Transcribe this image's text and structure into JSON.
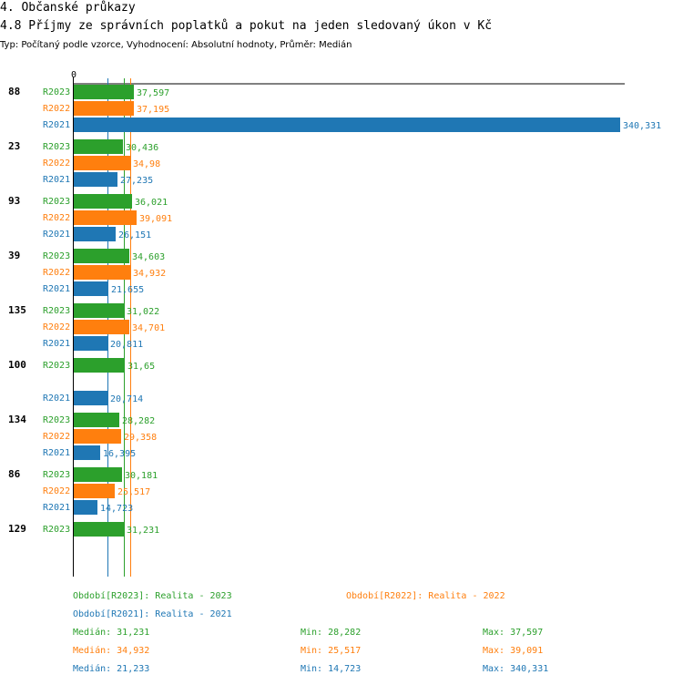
{
  "header": {
    "section": "4. Občanské průkazy",
    "title": "4.8 Příjmy ze správních poplatků a pokut na jeden sledovaný úkon v Kč",
    "subtitle": "Typ: Počítaný podle vzorce, Vyhodnocení: Absolutní hodnoty, Průměr: Medián"
  },
  "colors": {
    "R2023": "#2ca02c",
    "R2022": "#ff7f0e",
    "R2021": "#1f77b4"
  },
  "chart_data": {
    "type": "bar",
    "orientation": "horizontal",
    "axis_zero_label": "0",
    "xlim": [
      0,
      340.331
    ],
    "series_order": [
      "R2023",
      "R2022",
      "R2021"
    ],
    "groups": [
      {
        "label": "88",
        "values": {
          "R2023": 37.597,
          "R2022": 37.195,
          "R2021": 340.331
        },
        "text": {
          "R2023": "37,597",
          "R2022": "37,195",
          "R2021": "340,331"
        }
      },
      {
        "label": "23",
        "values": {
          "R2023": 30.436,
          "R2022": 34.98,
          "R2021": 27.235
        },
        "text": {
          "R2023": "30,436",
          "R2022": "34,98",
          "R2021": "27,235"
        }
      },
      {
        "label": "93",
        "values": {
          "R2023": 36.021,
          "R2022": 39.091,
          "R2021": 26.151
        },
        "text": {
          "R2023": "36,021",
          "R2022": "39,091",
          "R2021": "26,151"
        }
      },
      {
        "label": "39",
        "values": {
          "R2023": 34.603,
          "R2022": 34.932,
          "R2021": 21.655
        },
        "text": {
          "R2023": "34,603",
          "R2022": "34,932",
          "R2021": "21,655"
        }
      },
      {
        "label": "135",
        "values": {
          "R2023": 31.022,
          "R2022": 34.701,
          "R2021": 20.811
        },
        "text": {
          "R2023": "31,022",
          "R2022": "34,701",
          "R2021": "20,811"
        }
      },
      {
        "label": "100",
        "values": {
          "R2023": 31.65,
          "R2022": null,
          "R2021": 20.714
        },
        "text": {
          "R2023": "31,65",
          "R2022": null,
          "R2021": "20,714"
        }
      },
      {
        "label": "134",
        "values": {
          "R2023": 28.282,
          "R2022": 29.358,
          "R2021": 16.395
        },
        "text": {
          "R2023": "28,282",
          "R2022": "29,358",
          "R2021": "16,395"
        }
      },
      {
        "label": "86",
        "values": {
          "R2023": 30.181,
          "R2022": 25.517,
          "R2021": 14.723
        },
        "text": {
          "R2023": "30,181",
          "R2022": "25,517",
          "R2021": "14,723"
        }
      },
      {
        "label": "129",
        "values": {
          "R2023": 31.231,
          "R2022": null,
          "R2021": null
        },
        "text": {
          "R2023": "31,231",
          "R2022": null,
          "R2021": null
        }
      }
    ],
    "median_lines": {
      "R2023": 31.231,
      "R2022": 34.932,
      "R2021": 21.233
    }
  },
  "legend": {
    "r2023": "Období[R2023]: Realita - 2023",
    "r2022": "Období[R2022]: Realita - 2022",
    "r2021": "Období[R2021]: Realita - 2021"
  },
  "stats": {
    "r2023": {
      "median": "Medián: 31,231",
      "min": "Min: 28,282",
      "max": "Max: 37,597"
    },
    "r2022": {
      "median": "Medián: 34,932",
      "min": "Min: 25,517",
      "max": "Max: 39,091"
    },
    "r2021": {
      "median": "Medián: 21,233",
      "min": "Min: 14,723",
      "max": "Max: 340,331"
    }
  }
}
